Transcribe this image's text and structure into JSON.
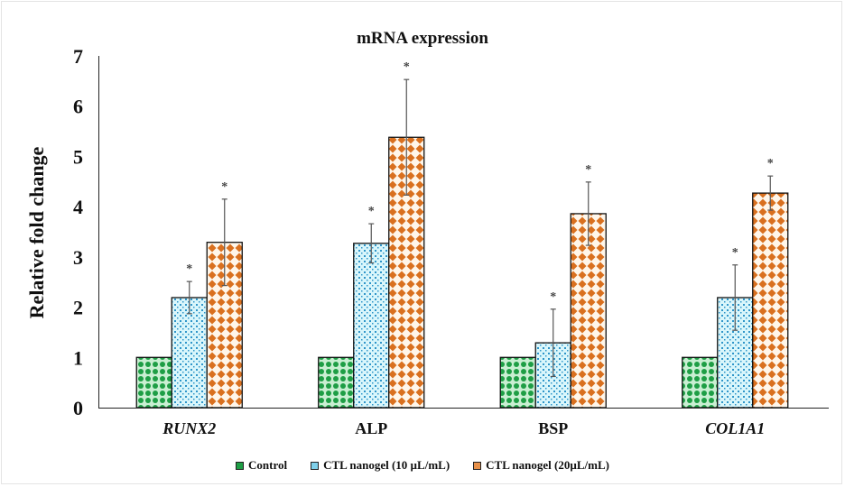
{
  "chart_data": {
    "type": "bar",
    "title": "mRNA expression",
    "xlabel": "",
    "ylabel": "Relative fold change",
    "ylim": [
      0,
      7
    ],
    "yticks": [
      0,
      1,
      2,
      3,
      4,
      5,
      6,
      7
    ],
    "grid": false,
    "legend_position": "bottom",
    "categories": [
      "RUNX2",
      "ALP",
      "BSP",
      "COL1A1"
    ],
    "categories_italic": [
      true,
      false,
      false,
      true
    ],
    "series": [
      {
        "name": "Control",
        "color": "#1e9e45",
        "pattern": "circles",
        "values": [
          1,
          1,
          1,
          1
        ],
        "error": [
          0,
          0,
          0,
          0
        ],
        "significance": [
          "",
          "",
          "",
          ""
        ]
      },
      {
        "name": "CTL nanogel (10 µL/mL)",
        "color": "#2f95c9",
        "pattern": "dots",
        "values": [
          2.19,
          3.27,
          1.29,
          2.19
        ],
        "error": [
          0.32,
          0.39,
          0.67,
          0.65
        ],
        "significance": [
          "*",
          "*",
          "*",
          "*"
        ]
      },
      {
        "name": "CTL nanogel (20µL/mL)",
        "color": "#d9701f",
        "pattern": "diamonds",
        "values": [
          3.29,
          5.38,
          3.86,
          4.27
        ],
        "error": [
          0.86,
          1.15,
          0.63,
          0.34
        ],
        "significance": [
          "*",
          "*",
          "*",
          "*"
        ]
      }
    ]
  }
}
